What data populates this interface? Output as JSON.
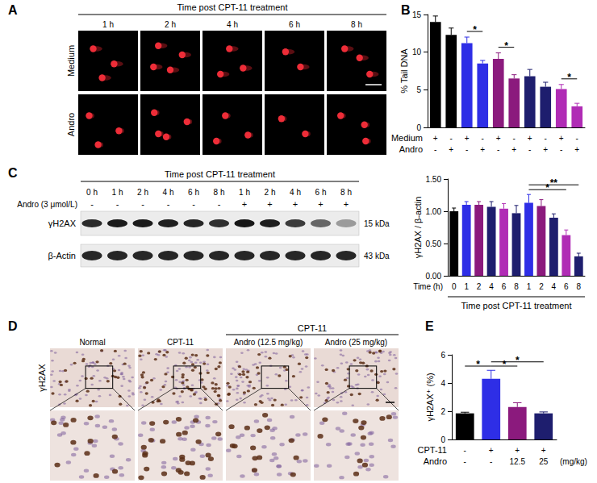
{
  "figure": {
    "A": {
      "label": "A",
      "title": "Time post CPT-11 treatment",
      "columns": [
        "1 h",
        "2 h",
        "4 h",
        "6 h",
        "8 h"
      ],
      "rows": [
        "Medium",
        "Andro"
      ]
    },
    "C_blot": {
      "label": "C",
      "title": "Time post CPT-11 treatment",
      "lanes": [
        "0 h",
        "1 h",
        "2 h",
        "4 h",
        "6 h",
        "8 h",
        "1 h",
        "2 h",
        "4 h",
        "6 h",
        "8 h"
      ],
      "treatment": {
        "label": "Andro (3 μmol/L)",
        "values": [
          "-",
          "-",
          "-",
          "-",
          "-",
          "-",
          "+",
          "+",
          "+",
          "+",
          "+"
        ]
      },
      "bands": [
        {
          "name": "γH2AX",
          "size": "15 kDa"
        },
        {
          "name": "β-Actin",
          "size": "43 kDa"
        }
      ]
    },
    "D": {
      "label": "D",
      "group_title": "CPT-11",
      "group_columns": [
        2,
        3
      ],
      "columns": [
        "Normal",
        "CPT-11",
        "Andro (12.5 mg/kg)",
        "Andro (25 mg/kg)"
      ],
      "row_label": "γH2AX"
    }
  },
  "chart_data": [
    {
      "panel": "B",
      "type": "bar",
      "y_label": "% Tail DNA",
      "categories": [
        null,
        null,
        null,
        null,
        null,
        null,
        null,
        null,
        null,
        null
      ],
      "rows": [
        {
          "label": "Medium",
          "values": [
            "+",
            "-",
            "+",
            "-",
            "+",
            "-",
            "+",
            "-",
            "+",
            "-"
          ]
        },
        {
          "label": "Andro",
          "values": [
            "-",
            "+",
            "-",
            "+",
            "-",
            "+",
            "-",
            "+",
            "-",
            "+"
          ]
        }
      ],
      "values": [
        14.0,
        12.3,
        11.2,
        8.5,
        9.1,
        6.5,
        6.8,
        5.4,
        5.1,
        2.8
      ],
      "errors": [
        0.8,
        0.9,
        0.8,
        0.4,
        0.8,
        0.5,
        0.9,
        0.6,
        0.6,
        0.4
      ],
      "colors": [
        "#000000",
        "#000000",
        "#2e2ee6",
        "#2e2ee6",
        "#8b1a7d",
        "#8b1a7d",
        "#1e1e6e",
        "#1e1e6e",
        "#b02cb5",
        "#b02cb5"
      ],
      "ylim": [
        0,
        15
      ],
      "yticks": [
        0,
        5,
        10,
        15
      ],
      "grid": false,
      "significance": [
        {
          "from": 2,
          "to": 3,
          "label": "*"
        },
        {
          "from": 4,
          "to": 5,
          "label": "*"
        },
        {
          "from": 8,
          "to": 9,
          "label": "*"
        }
      ]
    },
    {
      "type": "bar",
      "y_label": "γH2AX / β-actin",
      "x_label": "Time (h)",
      "x_title": "Time post CPT-11 treatment",
      "categories": [
        "0",
        "1",
        "2",
        "4",
        "6",
        "8",
        "1",
        "2",
        "4",
        "6",
        "8"
      ],
      "values": [
        1.0,
        1.1,
        1.1,
        1.07,
        1.04,
        0.97,
        1.13,
        1.08,
        0.9,
        0.63,
        0.3
      ],
      "errors": [
        0.05,
        0.05,
        0.05,
        0.08,
        0.08,
        0.12,
        0.13,
        0.1,
        0.06,
        0.08,
        0.05
      ],
      "colors": [
        "#000000",
        "#2e2ee6",
        "#8b1a7d",
        "#1e1e6e",
        "#b02cb5",
        "#1e1e6e",
        "#2e2ee6",
        "#8b1a7d",
        "#1e1e6e",
        "#b02cb5",
        "#1e1e6e"
      ],
      "ylim": [
        0,
        1.5
      ],
      "yticks": [
        {
          "value": 0,
          "label": "0.00"
        },
        {
          "value": 0.5,
          "label": "0.50"
        },
        {
          "value": 1,
          "label": "1.00"
        },
        {
          "value": 1.5,
          "label": "1.50"
        }
      ],
      "grid": false,
      "significance": [
        {
          "from": 6,
          "to": 9,
          "label": "*"
        },
        {
          "from": 6,
          "to": 10,
          "label": "**"
        }
      ]
    },
    {
      "panel": "E",
      "type": "bar",
      "y_label": "γH2AX⁺ (%)",
      "categories": [
        null,
        null,
        null,
        null
      ],
      "rows": [
        {
          "label": "CPT-11",
          "values": [
            "-",
            "+",
            "+",
            "+"
          ]
        },
        {
          "label": "Andro",
          "values": [
            "-",
            "-",
            "12.5",
            "25"
          ],
          "unit": "(mg/kg)"
        }
      ],
      "values": [
        1.85,
        4.3,
        2.3,
        1.85
      ],
      "errors": [
        0.08,
        0.6,
        0.3,
        0.1
      ],
      "colors": [
        "#000000",
        "#2e2ee6",
        "#8b1a7d",
        "#1e1e6e"
      ],
      "ylim": [
        0,
        6
      ],
      "yticks": [
        0,
        2,
        4,
        6
      ],
      "grid": false,
      "significance": [
        {
          "from": 0,
          "to": 1,
          "label": "*"
        },
        {
          "from": 1,
          "to": 2,
          "label": "*"
        },
        {
          "from": 1,
          "to": 3,
          "label": "*"
        }
      ]
    }
  ]
}
